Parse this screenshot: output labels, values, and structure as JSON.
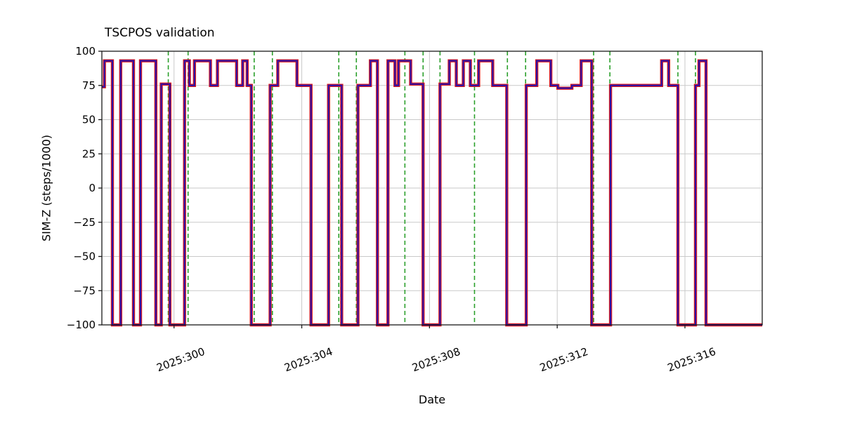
{
  "page": {
    "background": "#ffffff"
  },
  "chart_data": {
    "type": "line",
    "subtype": "step",
    "title": "TSCPOS validation",
    "xlabel": "Date",
    "ylabel": "SIM-Z (steps/1000)",
    "x_format": "YYYY:DOY",
    "xlim": [
      297.74,
      318.42
    ],
    "ylim": [
      -100,
      100
    ],
    "grid": true,
    "legend": "none",
    "colors": {
      "grid": "#c9c9c9",
      "frame": "#1a1a1a",
      "text": "#000000",
      "background": "#ffffff"
    },
    "xticks": [
      {
        "value": 300,
        "label": "2025:300"
      },
      {
        "value": 304,
        "label": "2025:304"
      },
      {
        "value": 308,
        "label": "2025:308"
      },
      {
        "value": 312,
        "label": "2025:312"
      },
      {
        "value": 316,
        "label": "2025:316"
      }
    ],
    "yticks": [
      {
        "value": 100,
        "label": "100"
      },
      {
        "value": 75,
        "label": "75"
      },
      {
        "value": 50,
        "label": "50"
      },
      {
        "value": 25,
        "label": "25"
      },
      {
        "value": 0,
        "label": "0"
      },
      {
        "value": -25,
        "label": "−25"
      },
      {
        "value": -50,
        "label": "−50"
      },
      {
        "value": -75,
        "label": "−75"
      },
      {
        "value": -100,
        "label": "−100"
      }
    ],
    "series": [
      {
        "id": "red-line",
        "name": "red underlay line",
        "color": "#e01a1a",
        "width": 4.4
      },
      {
        "id": "blue-line",
        "name": "blue overlay line",
        "color": "#2d12a8",
        "width": 2.2
      }
    ],
    "steps": [
      [
        297.74,
        74
      ],
      [
        297.82,
        93
      ],
      [
        298.07,
        -100
      ],
      [
        298.33,
        93
      ],
      [
        298.73,
        -100
      ],
      [
        298.95,
        93
      ],
      [
        299.43,
        -100
      ],
      [
        299.6,
        76
      ],
      [
        299.87,
        -100
      ],
      [
        300.33,
        93
      ],
      [
        300.48,
        75
      ],
      [
        300.64,
        93
      ],
      [
        301.14,
        75
      ],
      [
        301.36,
        93
      ],
      [
        301.96,
        75
      ],
      [
        302.15,
        93
      ],
      [
        302.29,
        75
      ],
      [
        302.42,
        -100
      ],
      [
        303.01,
        75
      ],
      [
        303.25,
        93
      ],
      [
        303.85,
        75
      ],
      [
        304.29,
        -100
      ],
      [
        304.84,
        75
      ],
      [
        305.25,
        -100
      ],
      [
        305.76,
        75
      ],
      [
        306.15,
        93
      ],
      [
        306.37,
        -100
      ],
      [
        306.7,
        93
      ],
      [
        306.92,
        75
      ],
      [
        307.03,
        93
      ],
      [
        307.41,
        76
      ],
      [
        307.8,
        -100
      ],
      [
        308.33,
        76
      ],
      [
        308.62,
        93
      ],
      [
        308.84,
        75
      ],
      [
        309.06,
        93
      ],
      [
        309.28,
        75
      ],
      [
        309.54,
        93
      ],
      [
        309.98,
        75
      ],
      [
        310.42,
        -100
      ],
      [
        311.03,
        75
      ],
      [
        311.36,
        93
      ],
      [
        311.8,
        75
      ],
      [
        312.02,
        73
      ],
      [
        312.46,
        75
      ],
      [
        312.75,
        93
      ],
      [
        313.08,
        -100
      ],
      [
        313.67,
        75
      ],
      [
        315.27,
        93
      ],
      [
        315.49,
        75
      ],
      [
        315.78,
        -100
      ],
      [
        316.33,
        75
      ],
      [
        316.44,
        93
      ],
      [
        316.66,
        -100
      ],
      [
        318.42,
        -100
      ]
    ],
    "vlines": {
      "name": "green dashed event markers",
      "color": "#2ca02c",
      "style": "dashed",
      "positions": [
        299.82,
        300.44,
        302.51,
        303.08,
        305.16,
        305.71,
        307.23,
        307.8,
        308.33,
        309.41,
        310.44,
        311.01,
        313.14,
        313.65,
        315.78,
        316.33
      ]
    }
  }
}
